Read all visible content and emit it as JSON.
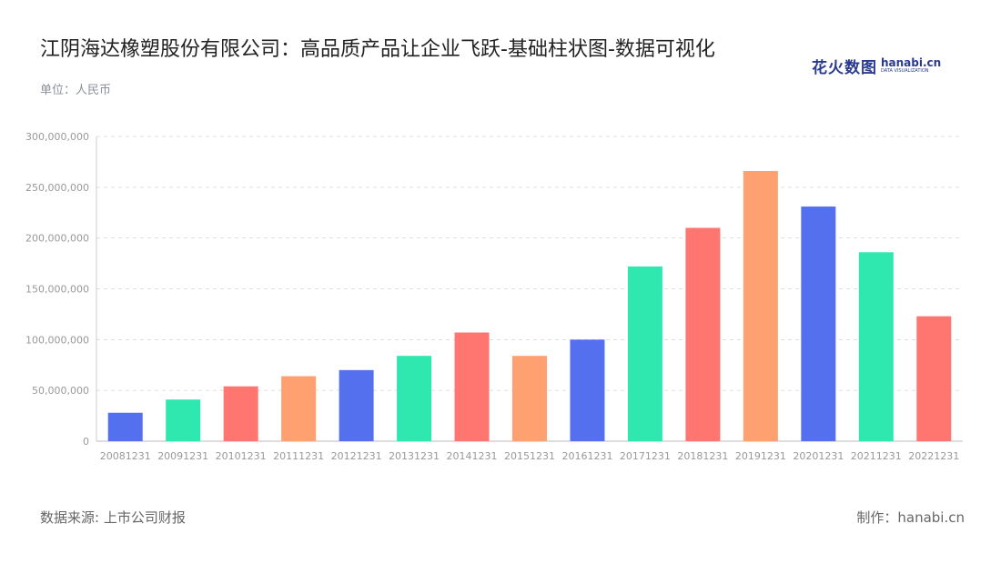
{
  "header": {
    "title": "江阴海达橡塑股份有限公司：高品质产品让企业飞跃-基础柱状图-数据可视化",
    "unit": "单位：人民币"
  },
  "logo": {
    "cn": "花火数图",
    "en": "hanabi.cn",
    "en_sub": "DATA VISUALIZATION"
  },
  "footer": {
    "source": "数据来源: 上市公司财报",
    "credit": "制作：hanabi.cn"
  },
  "chart_data": {
    "type": "bar",
    "categories": [
      "20081231",
      "20091231",
      "20101231",
      "20111231",
      "20121231",
      "20131231",
      "20141231",
      "20151231",
      "20161231",
      "20171231",
      "20181231",
      "20191231",
      "20201231",
      "20211231",
      "20221231"
    ],
    "values": [
      28000000,
      41000000,
      54000000,
      64000000,
      70000000,
      84000000,
      107000000,
      84000000,
      100000000,
      172000000,
      210000000,
      266000000,
      231000000,
      186000000,
      123000000
    ],
    "colors": [
      "#5470ef",
      "#2ee8b0",
      "#ff7570",
      "#ffa070",
      "#5470ef",
      "#2ee8b0",
      "#ff7570",
      "#ffa070",
      "#5470ef",
      "#2ee8b0",
      "#ff7570",
      "#ffa070",
      "#5470ef",
      "#2ee8b0",
      "#ff7570"
    ],
    "ylim": [
      0,
      300000000
    ],
    "yticks": [
      "0",
      "50,000,000",
      "100,000,000",
      "150,000,000",
      "200,000,000",
      "250,000,000",
      "300,000,000"
    ],
    "grid": true,
    "title": "江阴海达橡塑股份有限公司：高品质产品让企业飞跃-基础柱状图-数据可视化",
    "xlabel": "",
    "ylabel": ""
  }
}
